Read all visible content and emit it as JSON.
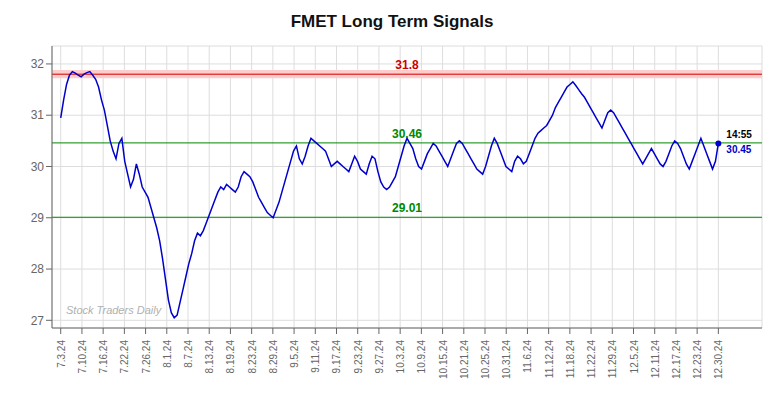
{
  "chart_data": {
    "type": "line",
    "title": "FMET Long Term Signals",
    "color": "#0000cc",
    "grid": true,
    "x": [
      0,
      1,
      2,
      3,
      4,
      5,
      6,
      7,
      8,
      9,
      10,
      11,
      12,
      13,
      14,
      15,
      16,
      17,
      18,
      19,
      20,
      21,
      22,
      23,
      24,
      25,
      26,
      27,
      28,
      29,
      30,
      31,
      32,
      33,
      34,
      35,
      36,
      37,
      38,
      39,
      40,
      41,
      42,
      43,
      44,
      45,
      46,
      47,
      48,
      49,
      50,
      51,
      52,
      53,
      54,
      55,
      56,
      57,
      58,
      59,
      60,
      61,
      62,
      63,
      64,
      65,
      66,
      67,
      68,
      69,
      70,
      71,
      72,
      73,
      74,
      75,
      76,
      77,
      78,
      79,
      80,
      81,
      82,
      83,
      84,
      85,
      86,
      87,
      88,
      89,
      90,
      91,
      92,
      93,
      94,
      95,
      96,
      97,
      98,
      99,
      100,
      101,
      102,
      103,
      104,
      105,
      106,
      107,
      108,
      109,
      110,
      111,
      112,
      113,
      114,
      115,
      116,
      117,
      118,
      119,
      120,
      121,
      122,
      123,
      124,
      125,
      126,
      127,
      128,
      129,
      130,
      131,
      132,
      133,
      134,
      135,
      136,
      137,
      138,
      139,
      140,
      141,
      142,
      143,
      144,
      145,
      146,
      147,
      148,
      149,
      150,
      151,
      152,
      153,
      154,
      155,
      156,
      157,
      158,
      159,
      160,
      161,
      162,
      163,
      164,
      165,
      166,
      167,
      168,
      169,
      170,
      171,
      172,
      173,
      174,
      175,
      176,
      177,
      178,
      179,
      180,
      181,
      182,
      183,
      184,
      185,
      186,
      187,
      188,
      189,
      190,
      191,
      192,
      193,
      194,
      195,
      196,
      197,
      198,
      199,
      200,
      201,
      202,
      203,
      204,
      205,
      206,
      207,
      208,
      209,
      210,
      211,
      212,
      213,
      214,
      215,
      216,
      217,
      218,
      219,
      220,
      221,
      222,
      223,
      224,
      225,
      226
    ],
    "values": [
      30.95,
      31.3,
      31.6,
      31.78,
      31.85,
      31.82,
      31.78,
      31.75,
      31.8,
      31.83,
      31.85,
      31.78,
      31.7,
      31.55,
      31.3,
      31.1,
      30.8,
      30.5,
      30.3,
      30.15,
      30.45,
      30.55,
      30.1,
      29.85,
      29.6,
      29.75,
      30.05,
      29.85,
      29.6,
      29.5,
      29.4,
      29.2,
      29.0,
      28.8,
      28.55,
      28.2,
      27.8,
      27.4,
      27.15,
      27.05,
      27.1,
      27.35,
      27.6,
      27.85,
      28.1,
      28.3,
      28.55,
      28.7,
      28.65,
      28.75,
      28.9,
      29.05,
      29.2,
      29.35,
      29.5,
      29.6,
      29.55,
      29.65,
      29.6,
      29.55,
      29.5,
      29.6,
      29.8,
      29.9,
      29.85,
      29.8,
      29.7,
      29.55,
      29.4,
      29.3,
      29.2,
      29.1,
      29.05,
      29.0,
      29.15,
      29.3,
      29.5,
      29.7,
      29.9,
      30.1,
      30.3,
      30.4,
      30.15,
      30.05,
      30.2,
      30.4,
      30.55,
      30.5,
      30.45,
      30.4,
      30.35,
      30.3,
      30.15,
      30.0,
      30.05,
      30.1,
      30.05,
      30.0,
      29.95,
      29.9,
      30.05,
      30.2,
      30.1,
      29.95,
      29.9,
      29.85,
      30.05,
      30.2,
      30.15,
      29.9,
      29.7,
      29.6,
      29.55,
      29.6,
      29.7,
      29.8,
      30.0,
      30.2,
      30.4,
      30.55,
      30.45,
      30.35,
      30.15,
      30.0,
      29.95,
      30.1,
      30.25,
      30.35,
      30.45,
      30.4,
      30.3,
      30.2,
      30.1,
      30.0,
      30.15,
      30.3,
      30.45,
      30.5,
      30.45,
      30.35,
      30.25,
      30.15,
      30.05,
      29.95,
      29.9,
      29.85,
      30.0,
      30.2,
      30.4,
      30.55,
      30.45,
      30.3,
      30.15,
      30.0,
      29.95,
      29.9,
      30.1,
      30.2,
      30.15,
      30.05,
      30.1,
      30.25,
      30.4,
      30.55,
      30.65,
      30.7,
      30.75,
      30.8,
      30.9,
      31.0,
      31.15,
      31.25,
      31.35,
      31.45,
      31.55,
      31.6,
      31.65,
      31.58,
      31.5,
      31.42,
      31.35,
      31.25,
      31.15,
      31.05,
      30.95,
      30.85,
      30.75,
      30.9,
      31.05,
      31.1,
      31.05,
      30.95,
      30.85,
      30.75,
      30.65,
      30.55,
      30.45,
      30.35,
      30.25,
      30.15,
      30.05,
      30.15,
      30.25,
      30.35,
      30.25,
      30.15,
      30.05,
      30.0,
      30.1,
      30.25,
      30.4,
      30.5,
      30.45,
      30.35,
      30.2,
      30.05,
      29.95,
      30.1,
      30.25,
      30.4,
      30.55,
      30.4,
      30.25,
      30.1,
      29.95,
      30.1,
      30.45
    ],
    "xlim": [
      -3,
      241
    ],
    "xticks": [
      {
        "value": 0,
        "label": "7.3.24"
      },
      {
        "value": 7.29,
        "label": "7.10.24"
      },
      {
        "value": 14.58,
        "label": "7.16.24"
      },
      {
        "value": 21.87,
        "label": "7.22.24"
      },
      {
        "value": 29.16,
        "label": "7.26.24"
      },
      {
        "value": 36.45,
        "label": "8.1.24"
      },
      {
        "value": 43.74,
        "label": "8.7.24"
      },
      {
        "value": 51.03,
        "label": "8.13.24"
      },
      {
        "value": 58.32,
        "label": "8.19.24"
      },
      {
        "value": 65.61,
        "label": "8.23.24"
      },
      {
        "value": 72.9,
        "label": "8.29.24"
      },
      {
        "value": 80.19,
        "label": "9.5.24"
      },
      {
        "value": 87.48,
        "label": "9.11.24"
      },
      {
        "value": 94.77,
        "label": "9.17.24"
      },
      {
        "value": 102.06,
        "label": "9.23.24"
      },
      {
        "value": 109.35,
        "label": "9.27.24"
      },
      {
        "value": 116.65,
        "label": "10.3.24"
      },
      {
        "value": 123.94,
        "label": "10.9.24"
      },
      {
        "value": 131.23,
        "label": "10.15.24"
      },
      {
        "value": 138.52,
        "label": "10.21.24"
      },
      {
        "value": 145.81,
        "label": "10.25.24"
      },
      {
        "value": 153.1,
        "label": "10.31.24"
      },
      {
        "value": 160.39,
        "label": "11.6.24"
      },
      {
        "value": 167.68,
        "label": "11.12.24"
      },
      {
        "value": 174.97,
        "label": "11.18.24"
      },
      {
        "value": 182.26,
        "label": "11.22.24"
      },
      {
        "value": 189.55,
        "label": "11.29.24"
      },
      {
        "value": 196.84,
        "label": "12.5.24"
      },
      {
        "value": 204.13,
        "label": "12.11.24"
      },
      {
        "value": 211.42,
        "label": "12.17.24"
      },
      {
        "value": 218.71,
        "label": "12.23.24"
      },
      {
        "value": 226,
        "label": "12.30.24"
      }
    ],
    "ylim": [
      26.85,
      32.35
    ],
    "yticks": [
      27,
      28,
      29,
      30,
      31,
      32
    ],
    "band": {
      "lower": 31.72,
      "upper": 31.88,
      "color": "#ffcccc"
    },
    "reference_lines": [
      {
        "y": 31.8,
        "label": "31.8",
        "color": "#cc0000"
      },
      {
        "y": 30.46,
        "label": "30.46",
        "color": "#008800"
      },
      {
        "y": 29.01,
        "label": "29.01",
        "color": "#008800"
      }
    ],
    "annotations": [
      {
        "text": "14:55",
        "color": "#000000"
      },
      {
        "text": "30.45",
        "color": "#0000cc"
      }
    ],
    "watermark": {
      "text": "Stock Traders Daily",
      "color": "#b0b0b0"
    }
  }
}
